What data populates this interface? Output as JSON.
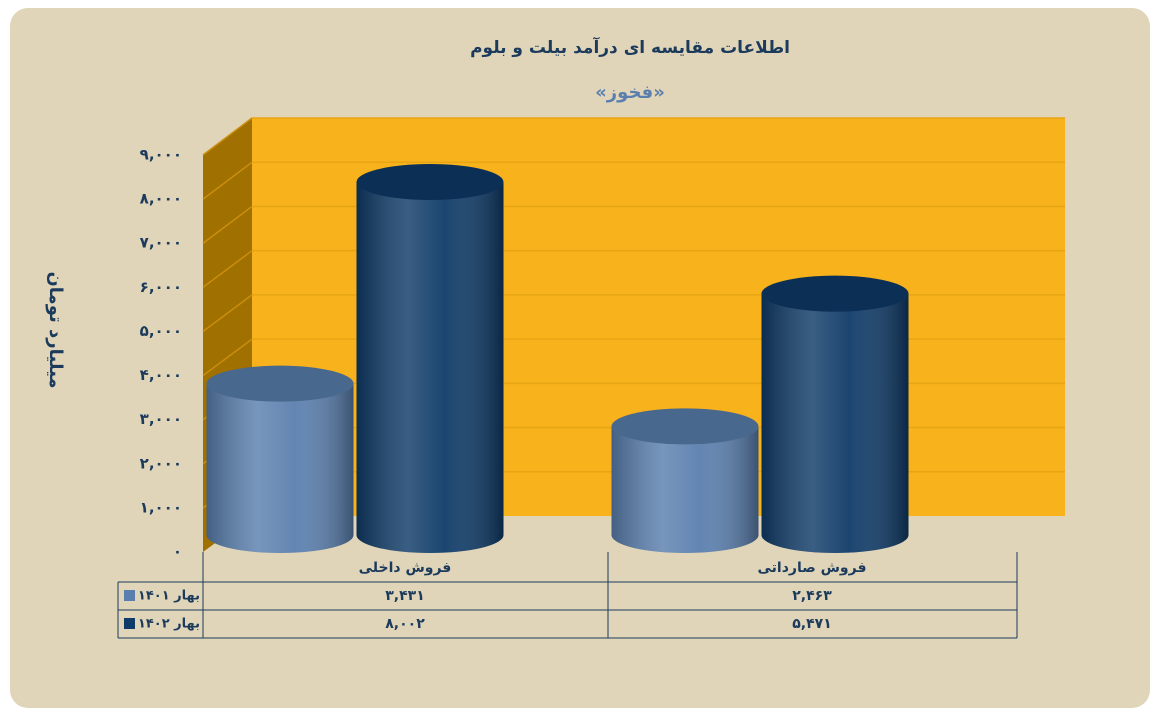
{
  "chart_data": {
    "type": "bar",
    "title": "اطلاعات مقایسه ای درآمد بیلت و بلوم",
    "subtitle": "«فخوز»",
    "y_label": "میلیارد تومان",
    "categories": [
      "فروش داخلی",
      "فروش صارداتی"
    ],
    "series": [
      {
        "name": "بهار ۱۴۰۱",
        "color": "#5a7fae",
        "values": [
          3431,
          2463
        ],
        "value_labels": [
          "۳,۴۳۱",
          "۲,۴۶۳"
        ]
      },
      {
        "name": "بهار ۱۴۰۲",
        "color": "#0f3b68",
        "values": [
          8002,
          5471
        ],
        "value_labels": [
          "۸,۰۰۲",
          "۵,۴۷۱"
        ]
      }
    ],
    "ylim": [
      0,
      9000
    ],
    "yticks": [
      {
        "value": 0,
        "label": "۰"
      },
      {
        "value": 1000,
        "label": "۱,۰۰۰"
      },
      {
        "value": 2000,
        "label": "۲,۰۰۰"
      },
      {
        "value": 3000,
        "label": "۳,۰۰۰"
      },
      {
        "value": 4000,
        "label": "۴,۰۰۰"
      },
      {
        "value": 5000,
        "label": "۵,۰۰۰"
      },
      {
        "value": 6000,
        "label": "۶,۰۰۰"
      },
      {
        "value": 7000,
        "label": "۷,۰۰۰"
      },
      {
        "value": 8000,
        "label": "۸,۰۰۰"
      },
      {
        "value": 9000,
        "label": "۹,۰۰۰"
      }
    ],
    "grid": true
  }
}
